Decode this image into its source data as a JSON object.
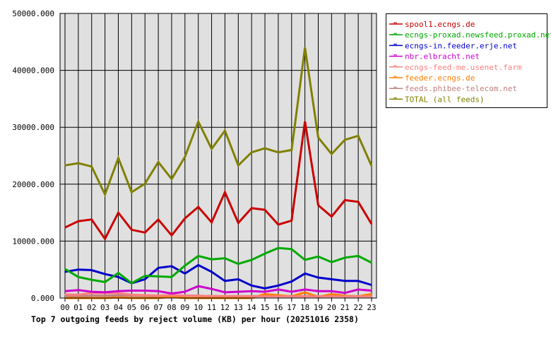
{
  "chart_data": {
    "type": "line",
    "title": "Top 7 outgoing feeds by reject volume (KB) per hour (20251016 2358)",
    "xlabel": "",
    "ylabel": "",
    "ylim": [
      0,
      50000
    ],
    "yticks": [
      "0.000",
      "10000.000",
      "20000.000",
      "30000.000",
      "40000.000",
      "50000.000"
    ],
    "grid": true,
    "legend_position": "right",
    "categories": [
      "00",
      "01",
      "02",
      "03",
      "04",
      "05",
      "06",
      "07",
      "08",
      "09",
      "10",
      "11",
      "12",
      "13",
      "14",
      "15",
      "16",
      "17",
      "18",
      "19",
      "20",
      "21",
      "22",
      "23"
    ],
    "series": [
      {
        "name": "spool1.ecngs.de",
        "color": "#cc0000",
        "values": [
          12400,
          13500,
          13800,
          10400,
          15000,
          12000,
          11500,
          13800,
          11000,
          14000,
          16000,
          13300,
          18600,
          13200,
          15800,
          15500,
          12900,
          13600,
          31000,
          16300,
          14300,
          17200,
          16900,
          13000
        ]
      },
      {
        "name": "ecngs-proxad.newsfeed.proxad.net",
        "color": "#00aa00",
        "values": [
          5100,
          3700,
          3200,
          2800,
          4400,
          2600,
          3900,
          3800,
          3700,
          5700,
          7400,
          6800,
          7000,
          6000,
          6700,
          7800,
          8800,
          8600,
          6700,
          7300,
          6300,
          7100,
          7400,
          6200
        ]
      },
      {
        "name": "ecngs-in.feeder.erje.net",
        "color": "#0000cc",
        "values": [
          4600,
          5000,
          4900,
          4200,
          3700,
          2600,
          3300,
          5300,
          5600,
          4300,
          5800,
          4600,
          3000,
          3300,
          2200,
          1700,
          2200,
          2900,
          4300,
          3600,
          3300,
          3000,
          3000,
          2300
        ]
      },
      {
        "name": "nbr.elbracht.net",
        "color": "#cc00cc",
        "values": [
          1200,
          1400,
          1100,
          1000,
          1200,
          1300,
          1300,
          1200,
          800,
          1100,
          2100,
          1600,
          1000,
          1100,
          1200,
          1100,
          1500,
          1100,
          1500,
          1200,
          1200,
          900,
          1500,
          1300
        ]
      },
      {
        "name": "ecngs-feed-me.usenet.farm",
        "color": "#ff7f7f",
        "values": [
          650,
          600,
          850,
          850,
          850,
          600,
          500,
          450,
          500,
          450,
          400,
          350,
          350,
          350,
          300,
          300,
          300,
          300,
          300,
          300,
          300,
          300,
          300,
          300
        ]
      },
      {
        "name": "feeder.ecngs.de",
        "color": "#ff7f00",
        "values": [
          0,
          0,
          0,
          0,
          100,
          0,
          0,
          0,
          200,
          0,
          0,
          0,
          0,
          0,
          0,
          700,
          500,
          300,
          1000,
          200,
          700,
          400,
          300,
          700
        ]
      },
      {
        "name": "feeds.phibee-telecom.net",
        "color": "#c08080",
        "values": [
          400,
          350,
          400,
          400,
          450,
          400,
          400,
          350,
          450,
          400,
          400,
          350,
          350,
          350,
          350,
          350,
          350,
          350,
          350,
          350,
          350,
          350,
          350,
          350
        ]
      },
      {
        "name": "TOTAL (all feeds)",
        "color": "#808000",
        "values": [
          23300,
          23700,
          23100,
          18200,
          24600,
          18600,
          20100,
          23900,
          20900,
          24800,
          31000,
          26200,
          29400,
          23300,
          25600,
          26300,
          25600,
          26000,
          44000,
          28200,
          25300,
          27800,
          28500,
          23200
        ]
      }
    ]
  }
}
